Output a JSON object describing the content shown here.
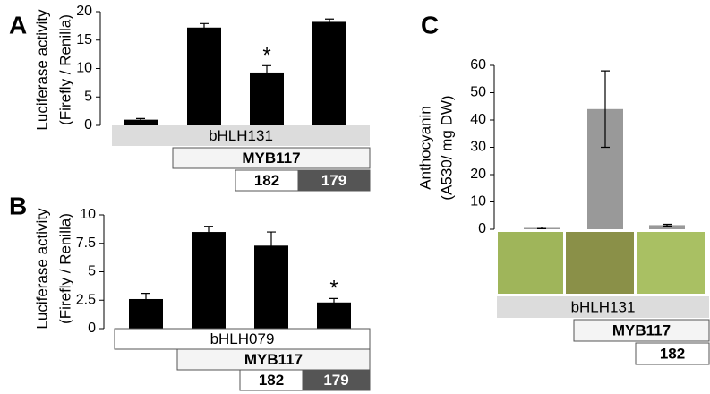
{
  "chart_data": [
    {
      "type": "bar",
      "panel": "A",
      "ylabel": [
        "Luciferase activity",
        "(Firefly / Renilla)"
      ],
      "values": [
        1.0,
        17.2,
        9.3,
        18.2
      ],
      "errors": [
        0.2,
        0.7,
        1.2,
        0.5
      ],
      "color": "#000000",
      "ylim": [
        0,
        20
      ],
      "yticks": [
        0,
        5,
        10,
        15,
        20
      ],
      "annotations": [
        {
          "text": "*",
          "bar": 2
        }
      ],
      "rows": [
        [
          "bHLH131"
        ],
        [
          "MYB117"
        ],
        [
          "182",
          "179"
        ]
      ],
      "row_fills": [
        "#dcdcdc",
        "#f4f4f4",
        "#ffffff"
      ],
      "last_cell_fill": "#555555"
    },
    {
      "type": "bar",
      "panel": "B",
      "ylabel": [
        "Luciferase activity",
        "(Firefly / Renilla)"
      ],
      "values": [
        2.6,
        8.5,
        7.3,
        2.3
      ],
      "errors": [
        0.5,
        0.5,
        1.2,
        0.35
      ],
      "color": "#000000",
      "ylim": [
        0,
        10
      ],
      "yticks": [
        0,
        2.5,
        5,
        7.5,
        10
      ],
      "annotations": [
        {
          "text": "*",
          "bar": 3
        }
      ],
      "rows": [
        [
          "bHLH079"
        ],
        [
          "MYB117"
        ],
        [
          "182",
          "179"
        ]
      ],
      "row_fills": [
        "#ffffff",
        "#f4f4f4",
        "#ffffff"
      ],
      "last_cell_fill": "#555555"
    },
    {
      "type": "bar",
      "panel": "C",
      "ylabel": [
        "Anthocyanin",
        "(A530/ mg DW)"
      ],
      "values": [
        0.5,
        44,
        1.5
      ],
      "errors": [
        0.3,
        14,
        0.3
      ],
      "color": "#999999",
      "ylim": [
        0,
        60
      ],
      "yticks": [
        0,
        10,
        20,
        30,
        40,
        50,
        60
      ],
      "annotations": [],
      "rows": [
        [
          "bHLH131"
        ],
        [
          "MYB117"
        ],
        [
          "182"
        ]
      ],
      "row_fills": [
        "#dcdcdc",
        "#f4f4f4",
        "#ffffff"
      ],
      "last_cell_fill": "#ffffff"
    }
  ]
}
